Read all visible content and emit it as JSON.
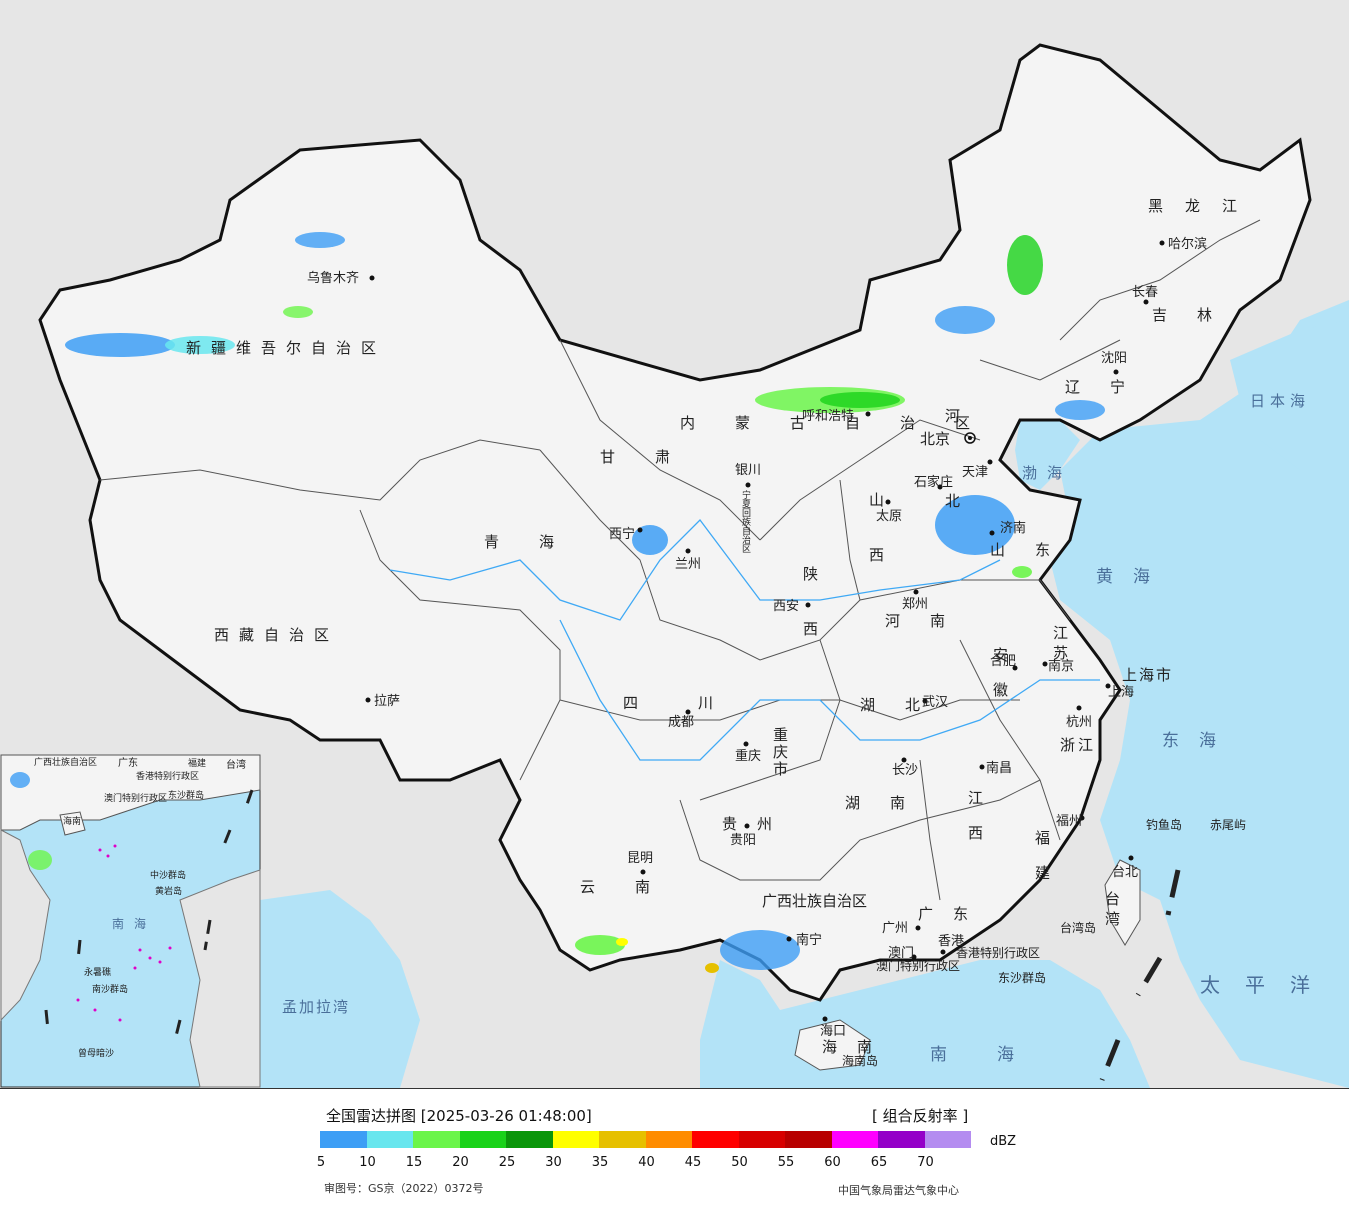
{
  "map": {
    "colors": {
      "sea": "#b3e3f7",
      "land_outside": "#e6e6e6",
      "china_land": "#f4f4f4",
      "border": "#111111",
      "rivers": "#3fa9f5"
    },
    "provinces": [
      {
        "name": "新疆维吾尔自治区"
      },
      {
        "name": "西藏自治区"
      },
      {
        "name": "青海"
      },
      {
        "name": "甘肃"
      },
      {
        "name": "内蒙古自治区"
      },
      {
        "name": "黑龙江"
      },
      {
        "name": "吉林"
      },
      {
        "name": "辽宁"
      },
      {
        "name": "河北"
      },
      {
        "name": "山西"
      },
      {
        "name": "陕西"
      },
      {
        "name": "河南"
      },
      {
        "name": "山东"
      },
      {
        "name": "江苏"
      },
      {
        "name": "安徽"
      },
      {
        "name": "浙江"
      },
      {
        "name": "湖北"
      },
      {
        "name": "湖南"
      },
      {
        "name": "江西"
      },
      {
        "name": "福建"
      },
      {
        "name": "四川"
      },
      {
        "name": "重庆市"
      },
      {
        "name": "贵州"
      },
      {
        "name": "云南"
      },
      {
        "name": "广西壮族自治区"
      },
      {
        "name": "广东"
      },
      {
        "name": "海南"
      },
      {
        "name": "台湾"
      },
      {
        "name": "上海市"
      },
      {
        "name": "宁夏回族自治区"
      },
      {
        "name": "香港特别行政区"
      },
      {
        "name": "澳门特别行政区"
      }
    ],
    "cities": [
      "乌鲁木齐",
      "拉萨",
      "西宁",
      "兰州",
      "银川",
      "呼和浩特",
      "北京",
      "天津",
      "石家庄",
      "太原",
      "济南",
      "郑州",
      "西安",
      "成都",
      "重庆",
      "贵阳",
      "昆明",
      "南宁",
      "广州",
      "香港",
      "澳门",
      "海口",
      "长沙",
      "武汉",
      "南昌",
      "合肥",
      "南京",
      "杭州",
      "上海",
      "福州",
      "台北",
      "沈阳",
      "长春",
      "哈尔滨"
    ],
    "seas": [
      "渤海",
      "黄海",
      "东海",
      "南海",
      "太平洋",
      "日本海",
      "孟加拉湾"
    ],
    "islands": [
      "钓鱼岛",
      "赤尾屿",
      "台湾岛",
      "东沙群岛",
      "海南岛"
    ],
    "inset": {
      "labels": [
        "广西壮族自治区",
        "广东",
        "福建",
        "台湾",
        "香港特别行政区",
        "澳门特别行政区",
        "东沙群岛",
        "海南",
        "中沙群岛",
        "黄岩岛",
        "南海",
        "永暑礁",
        "南沙群岛",
        "曾母暗沙"
      ]
    }
  },
  "legend": {
    "title": "全国雷达拼图 [2025-03-26 01:48:00]",
    "product": "[ 组合反射率 ]",
    "unit": "dBZ",
    "colors": [
      "#3d9ef5",
      "#68e6ee",
      "#6bf54a",
      "#19d219",
      "#0a960a",
      "#ffff00",
      "#e6c000",
      "#ff8c00",
      "#ff0000",
      "#d70000",
      "#b80000",
      "#ff00ff",
      "#9400c8",
      "#b48cf0"
    ],
    "ticks": [
      "5",
      "10",
      "15",
      "20",
      "25",
      "30",
      "35",
      "40",
      "45",
      "50",
      "55",
      "60",
      "65",
      "70"
    ],
    "approval": "审图号：GS京（2022）0372号",
    "source": "中国气象局雷达气象中心"
  }
}
